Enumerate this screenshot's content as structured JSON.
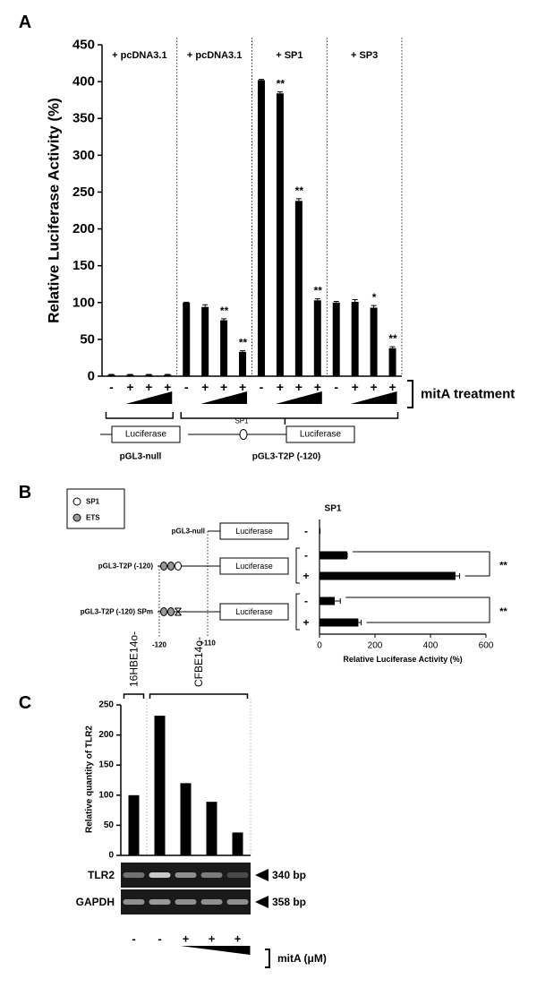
{
  "chart_data": [
    {
      "type": "bar",
      "panel": "A",
      "ylabel": "Relative Luciferase Activity (%)",
      "groups": [
        "+ pcDNA3.1",
        "+ pcDNA3.1",
        "+ SP1",
        "+ SP3"
      ],
      "categories": [
        "-",
        "+",
        "+",
        "+",
        "-",
        "+",
        "+",
        "+",
        "-",
        "+",
        "+",
        "+",
        "-",
        "+",
        "+",
        "+"
      ],
      "values": [
        2,
        2,
        2,
        2,
        100,
        94,
        76,
        33,
        402,
        384,
        238,
        103,
        100,
        101,
        93,
        38
      ],
      "errors": [
        0.5,
        0.5,
        0.5,
        0.5,
        0.5,
        3,
        2,
        1.5,
        1,
        2,
        3,
        2,
        1.5,
        3,
        3,
        2
      ],
      "significance": [
        null,
        null,
        null,
        null,
        null,
        null,
        "**",
        "**",
        null,
        "**",
        "**",
        "**",
        null,
        null,
        "*",
        "**"
      ],
      "color": "#000000",
      "ylim": [
        0,
        450
      ],
      "yticks": [
        0,
        50,
        100,
        150,
        200,
        250,
        300,
        350,
        400,
        450
      ],
      "treatment_label": "mitA treatment",
      "constructs": [
        {
          "name": "pGL3-null",
          "reporter": "Luciferase"
        },
        {
          "name": "pGL3-T2P (-120)",
          "reporter": "Luciferase",
          "site": "SP1"
        }
      ]
    },
    {
      "type": "hbar",
      "panel": "B",
      "column_title": "SP1",
      "legend": [
        {
          "name": "SP1",
          "color": "#ffffff"
        },
        {
          "name": "ETS",
          "color": "#999999"
        }
      ],
      "constructs": [
        {
          "name": "pGL3-null",
          "reporter": "Luciferase"
        },
        {
          "name": "pGL3-T2P (-120)",
          "reporter": "Luciferase"
        },
        {
          "name": "pGL3-T2P (-120) SPm",
          "reporter": "Luciferase"
        }
      ],
      "position_labels": [
        "-120",
        "+110"
      ],
      "categories": [
        "-",
        "-",
        "+",
        "-",
        "+"
      ],
      "values": [
        2,
        100,
        490,
        55,
        140
      ],
      "errors": [
        0,
        0,
        15,
        20,
        10
      ],
      "color": "#000000",
      "significance": [
        "**",
        "**"
      ],
      "xlabel": "Relative Luciferase Activity (%)",
      "xlim": [
        0,
        600
      ],
      "xticks": [
        0,
        200,
        400,
        600
      ]
    },
    {
      "type": "bar",
      "panel": "C",
      "ylabel": "Relative quantity of TLR2",
      "groups": [
        "16HBE14o-",
        "CFBE14o-"
      ],
      "categories": [
        "-",
        "-",
        "+",
        "+",
        "+"
      ],
      "values": [
        100,
        232,
        120,
        89,
        38
      ],
      "color": "#000000",
      "ylim": [
        0,
        250
      ],
      "yticks": [
        0,
        50,
        100,
        150,
        200,
        250
      ],
      "gel": [
        {
          "name": "TLR2",
          "size": "340 bp"
        },
        {
          "name": "GAPDH",
          "size": "358 bp"
        }
      ],
      "treatment_label": "mitA (μM)"
    }
  ]
}
